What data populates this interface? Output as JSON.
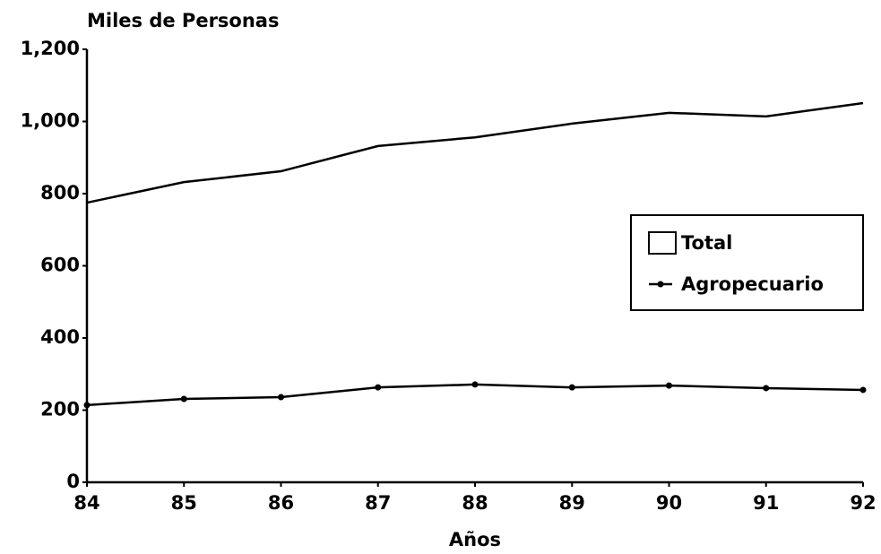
{
  "chart_data": {
    "type": "line",
    "y_axis_label": "Miles de Personas",
    "x_axis_label": "Años",
    "x": [
      84,
      85,
      86,
      87,
      88,
      89,
      90,
      91,
      92
    ],
    "xlim": [
      84,
      92
    ],
    "xticks": [
      84,
      85,
      86,
      87,
      88,
      89,
      90,
      91,
      92
    ],
    "ylim": [
      0,
      1200
    ],
    "yticks": [
      0,
      200,
      400,
      600,
      800,
      {
        "value": 1000,
        "label": "1,000"
      },
      {
        "value": 1200,
        "label": "1,200"
      }
    ],
    "legend": "right",
    "series": [
      {
        "name": "Total",
        "color": "#000000",
        "fill": "#ffffff",
        "area": true,
        "marker": false,
        "values": [
          775,
          832,
          862,
          932,
          956,
          994,
          1024,
          1014,
          1051
        ]
      },
      {
        "name": "Agropecuario",
        "color": "#000000",
        "area": false,
        "marker": true,
        "values": [
          214,
          231,
          236,
          263,
          271,
          263,
          268,
          261,
          256
        ]
      }
    ]
  }
}
